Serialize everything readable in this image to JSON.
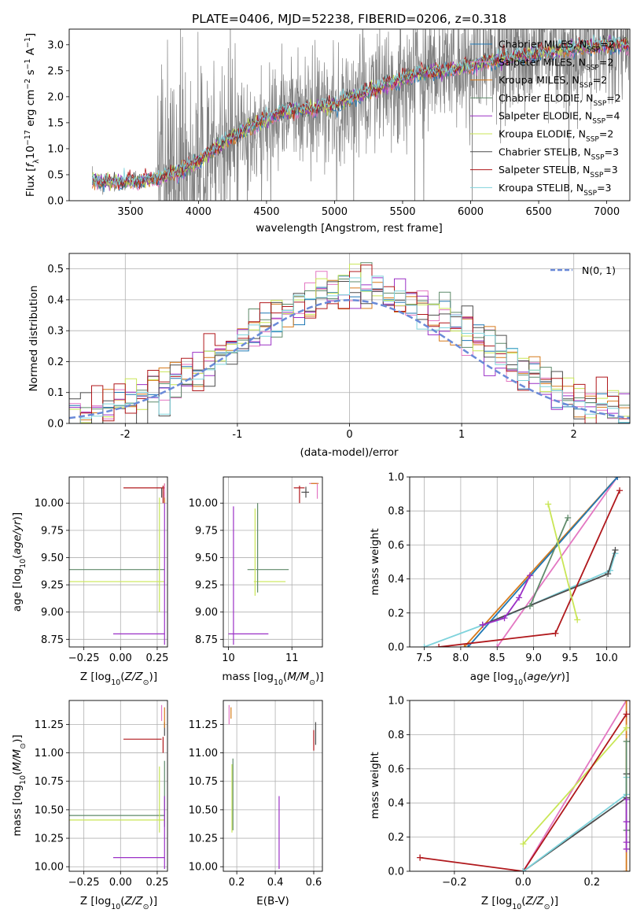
{
  "colors": {
    "Chabrier MILES": "#1f77b4",
    "Salpeter MILES": "#e377c2",
    "Kroupa MILES": "#d67a1c",
    "Chabrier ELODIE": "#5f8a6a",
    "Salpeter ELODIE": "#9b30c6",
    "Kroupa ELODIE": "#c9e656",
    "Chabrier STELIB": "#4d4d4d",
    "Salpeter STELIB": "#b0181c",
    "Kroupa STELIB": "#7fd3dc",
    "gauss": "#6a8ad8",
    "data": "#808080"
  },
  "chart_data": [
    {
      "type": "line",
      "title": "PLATE=0406, MJD=52238, FIBERID=0206, z=0.318",
      "xlabel": "wavelength [Angstrom, rest frame]",
      "ylabel": "Flux [fλ10⁻¹⁷ erg cm⁻² s⁻¹ A⁻¹]",
      "xlim": [
        3050,
        7170
      ],
      "ylim": [
        0,
        3.3
      ],
      "xticks": [
        3500,
        4000,
        4500,
        5000,
        5500,
        6000,
        6500,
        7000
      ],
      "yticks": [
        0.0,
        0.5,
        1.0,
        1.5,
        2.0,
        2.5,
        3.0
      ],
      "legend_position": "right",
      "legend": [
        {
          "model": "Chabrier MILES",
          "nssp": 2
        },
        {
          "model": "Salpeter MILES",
          "nssp": 2
        },
        {
          "model": "Kroupa MILES",
          "nssp": 2
        },
        {
          "model": "Chabrier ELODIE",
          "nssp": 2
        },
        {
          "model": "Salpeter ELODIE",
          "nssp": 4
        },
        {
          "model": "Kroupa ELODIE",
          "nssp": 2
        },
        {
          "model": "Chabrier STELIB",
          "nssp": 3
        },
        {
          "model": "Salpeter STELIB",
          "nssp": 3
        },
        {
          "model": "Kroupa STELIB",
          "nssp": 3
        }
      ],
      "legend_prefix": "N",
      "legend_sub": "SSP",
      "model_trend": {
        "x": [
          3220,
          3400,
          3600,
          3800,
          4000,
          4200,
          4400,
          4600,
          4800,
          5000,
          5200,
          5400,
          5600,
          5800,
          6000,
          6200,
          6400,
          6600,
          6800,
          7000
        ],
        "y": [
          0.4,
          0.35,
          0.38,
          0.5,
          0.75,
          1.15,
          1.45,
          1.7,
          1.75,
          1.85,
          2.05,
          2.25,
          2.45,
          2.5,
          2.6,
          2.72,
          2.8,
          2.88,
          2.95,
          3.0
        ]
      },
      "data_trend": {
        "x": [
          3220,
          3400,
          3600,
          3800,
          4000,
          4200,
          4400,
          4600,
          4800,
          5000,
          5200,
          5400,
          5600,
          5800,
          6000,
          6200,
          6400,
          6600,
          6800,
          7000
        ],
        "y": [
          0.35,
          0.3,
          0.35,
          0.55,
          0.7,
          1.1,
          1.4,
          1.65,
          1.8,
          1.9,
          2.0,
          2.2,
          2.4,
          2.5,
          2.6,
          2.7,
          2.8,
          2.85,
          2.9,
          3.0
        ]
      }
    },
    {
      "type": "area",
      "xlabel": "(data-model)/error",
      "ylabel": "Normed distribution",
      "xlim": [
        -2.5,
        2.5
      ],
      "ylim": [
        0,
        0.55
      ],
      "xticks": [
        -2,
        -1,
        0,
        1,
        2
      ],
      "yticks": [
        0.0,
        0.1,
        0.2,
        0.3,
        0.4,
        0.5
      ],
      "legend_position": "top-right",
      "legend": [
        "N(0, 1)"
      ],
      "hist_bin_width": 0.1
    },
    {
      "type": "scatter",
      "xlabel": "Z [log₁₀(Z/Z⊙)]",
      "ylabel": "age  [log₁₀(age/yr)]",
      "xlim": [
        -0.35,
        0.32
      ],
      "ylim": [
        8.68,
        10.24
      ],
      "xticks": [
        -0.25,
        0.0,
        0.25
      ],
      "yticks": [
        8.75,
        9.0,
        9.25,
        9.5,
        9.75,
        10.0
      ],
      "xticklabels": [
        "−0.25",
        "0.00",
        "0.25"
      ],
      "yticklabels": [
        "8.75",
        "9.00",
        "9.25",
        "9.50",
        "9.75",
        "10.00"
      ],
      "hlines": [
        {
          "model": "Salpeter STELIB",
          "y": 10.14,
          "x": [
            0.02,
            0.3
          ]
        },
        {
          "model": "Chabrier ELODIE",
          "y": 9.39,
          "x": [
            -0.35,
            0.3
          ]
        },
        {
          "model": "Kroupa ELODIE",
          "y": 9.28,
          "x": [
            -0.35,
            0.3
          ]
        },
        {
          "model": "Salpeter ELODIE",
          "y": 8.8,
          "x": [
            -0.05,
            0.3
          ]
        }
      ],
      "vlines": [
        {
          "model": "Kroupa ELODIE",
          "x": 0.265,
          "y": [
            9.0,
            10.05
          ]
        },
        {
          "model": "Salpeter ELODIE",
          "x": 0.3,
          "y": [
            8.7,
            10.1
          ]
        },
        {
          "model": "Salpeter STELIB",
          "x": 0.29,
          "y": [
            10.0,
            10.16
          ]
        },
        {
          "model": "Chabrier STELIB",
          "x": 0.28,
          "y": [
            10.05,
            10.14
          ]
        },
        {
          "model": "Kroupa MILES",
          "x": 0.3,
          "y": [
            10.0,
            10.18
          ]
        },
        {
          "model": "Salpeter MILES",
          "x": 0.3,
          "y": [
            10.05,
            10.18
          ]
        }
      ]
    },
    {
      "type": "scatter",
      "xlabel": "mass [log₁₀(M/M⊙)]",
      "xlim": [
        9.92,
        11.48
      ],
      "ylim": [
        8.68,
        10.24
      ],
      "xticks": [
        10,
        11
      ],
      "yticks": [
        8.75,
        9.0,
        9.25,
        9.5,
        9.75,
        10.0
      ],
      "xticklabels": [
        "10",
        "11"
      ],
      "yticklabels": [
        "8.75",
        "9.00",
        "9.25",
        "9.50",
        "9.75",
        "10.00"
      ],
      "hlines": [
        {
          "model": "Salpeter ELODIE",
          "y": 8.8,
          "x": [
            10.0,
            10.63
          ]
        },
        {
          "model": "Chabrier ELODIE",
          "y": 9.39,
          "x": [
            10.3,
            10.95
          ]
        },
        {
          "model": "Kroupa ELODIE",
          "y": 9.28,
          "x": [
            10.4,
            10.9
          ]
        },
        {
          "model": "Salpeter STELIB",
          "y": 10.14,
          "x": [
            11.03,
            11.2
          ]
        },
        {
          "model": "Chabrier STELIB",
          "y": 10.1,
          "x": [
            11.15,
            11.27
          ]
        },
        {
          "model": "Salpeter MILES",
          "y": 10.18,
          "x": [
            11.27,
            11.4
          ]
        },
        {
          "model": "Kroupa MILES",
          "y": 10.18,
          "x": [
            11.3,
            11.42
          ]
        }
      ],
      "vlines": [
        {
          "model": "Salpeter ELODIE",
          "x": 10.08,
          "y": [
            8.7,
            9.97
          ]
        },
        {
          "model": "Kroupa ELODIE",
          "x": 10.42,
          "y": [
            9.15,
            9.95
          ]
        },
        {
          "model": "Chabrier ELODIE",
          "x": 10.46,
          "y": [
            9.18,
            10.0
          ]
        },
        {
          "model": "Salpeter STELIB",
          "x": 11.12,
          "y": [
            10.0,
            10.16
          ]
        },
        {
          "model": "Chabrier STELIB",
          "x": 11.22,
          "y": [
            10.05,
            10.15
          ]
        },
        {
          "model": "Salpeter MILES",
          "x": 11.4,
          "y": [
            10.04,
            10.18
          ]
        }
      ]
    },
    {
      "type": "line",
      "xlabel": "age  [log₁₀(age/yr)]",
      "ylabel": "mass weight",
      "xlim": [
        7.3,
        10.32
      ],
      "ylim": [
        0,
        1
      ],
      "xticks": [
        7.5,
        8.0,
        8.5,
        9.0,
        9.5,
        10.0
      ],
      "yticks": [
        0.0,
        0.2,
        0.4,
        0.6,
        0.8,
        1.0
      ],
      "xticklabels": [
        "7.5",
        "8.0",
        "8.5",
        "9.0",
        "9.5",
        "10.0"
      ],
      "yticklabels": [
        "0.0",
        "0.2",
        "0.4",
        "0.6",
        "0.8",
        "1.0"
      ],
      "series": [
        {
          "model": "Kroupa MILES",
          "x": [
            8.05,
            10.15
          ],
          "y": [
            0.0,
            1.0
          ]
        },
        {
          "model": "Salpeter MILES",
          "x": [
            8.5,
            10.15
          ],
          "y": [
            0.0,
            1.0
          ]
        },
        {
          "model": "Chabrier MILES",
          "x": [
            8.1,
            10.15
          ],
          "y": [
            0.0,
            1.0
          ]
        },
        {
          "model": "Kroupa STELIB",
          "x": [
            7.5,
            8.5,
            10.05,
            10.12
          ],
          "y": [
            0.0,
            0.16,
            0.45,
            0.55
          ]
        },
        {
          "model": "Chabrier STELIB",
          "x": [
            8.3,
            10.02,
            10.12
          ],
          "y": [
            0.13,
            0.43,
            0.57
          ]
        },
        {
          "model": "Salpeter STELIB",
          "x": [
            7.7,
            9.3,
            10.18
          ],
          "y": [
            0.0,
            0.08,
            0.92
          ]
        },
        {
          "model": "Chabrier ELODIE",
          "x": [
            8.95,
            9.47
          ],
          "y": [
            0.24,
            0.76
          ]
        },
        {
          "model": "Kroupa ELODIE",
          "x": [
            9.2,
            9.6
          ],
          "y": [
            0.84,
            0.16
          ]
        },
        {
          "model": "Salpeter ELODIE",
          "x": [
            8.3,
            8.6,
            8.8,
            8.95
          ],
          "y": [
            0.13,
            0.17,
            0.29,
            0.42
          ]
        }
      ]
    },
    {
      "type": "scatter",
      "xlabel": "Z [log₁₀(Z/Z⊙)]",
      "ylabel": "mass [log₁₀(M/M⊙)]",
      "xlim": [
        -0.35,
        0.32
      ],
      "ylim": [
        9.96,
        11.46
      ],
      "xticks": [
        -0.25,
        0.0,
        0.25
      ],
      "yticks": [
        10.0,
        10.25,
        10.5,
        10.75,
        11.0,
        11.25
      ],
      "xticklabels": [
        "−0.25",
        "0.00",
        "0.25"
      ],
      "yticklabels": [
        "10.00",
        "10.25",
        "10.50",
        "10.75",
        "11.00",
        "11.25"
      ],
      "hlines": [
        {
          "model": "Salpeter STELIB",
          "y": 11.12,
          "x": [
            0.02,
            0.28
          ]
        },
        {
          "model": "Chabrier ELODIE",
          "y": 10.45,
          "x": [
            -0.35,
            0.3
          ]
        },
        {
          "model": "Kroupa ELODIE",
          "y": 10.41,
          "x": [
            -0.35,
            0.3
          ]
        },
        {
          "model": "Salpeter ELODIE",
          "y": 10.08,
          "x": [
            -0.05,
            0.3
          ]
        }
      ],
      "vlines": [
        {
          "model": "Kroupa ELODIE",
          "x": 0.265,
          "y": [
            10.3,
            10.88
          ]
        },
        {
          "model": "Chabrier ELODIE",
          "x": 0.3,
          "y": [
            10.35,
            10.93
          ]
        },
        {
          "model": "Salpeter ELODIE",
          "x": 0.3,
          "y": [
            9.98,
            10.62
          ]
        },
        {
          "model": "Salpeter STELIB",
          "x": 0.29,
          "y": [
            11.0,
            11.14
          ]
        },
        {
          "model": "Chabrier STELIB",
          "x": 0.3,
          "y": [
            11.15,
            11.27
          ]
        },
        {
          "model": "Kroupa MILES",
          "x": 0.3,
          "y": [
            11.22,
            11.4
          ]
        },
        {
          "model": "Salpeter MILES",
          "x": 0.28,
          "y": [
            11.28,
            11.42
          ]
        }
      ]
    },
    {
      "type": "scatter",
      "xlabel": "E(B-V)",
      "xlim": [
        0.13,
        0.645
      ],
      "ylim": [
        9.96,
        11.46
      ],
      "xticks": [
        0.2,
        0.4,
        0.6
      ],
      "yticks": [
        10.0,
        10.25,
        10.5,
        10.75,
        11.0,
        11.25
      ],
      "xticklabels": [
        "0.2",
        "0.4",
        "0.6"
      ],
      "yticklabels": [
        "10.00",
        "10.25",
        "10.50",
        "10.75",
        "11.00",
        "11.25"
      ],
      "vlines": [
        {
          "model": "Kroupa ELODIE",
          "x": 0.175,
          "y": [
            10.3,
            10.9
          ]
        },
        {
          "model": "Chabrier ELODIE",
          "x": 0.18,
          "y": [
            10.32,
            10.95
          ]
        },
        {
          "model": "Salpeter ELODIE",
          "x": 0.42,
          "y": [
            9.98,
            10.62
          ]
        },
        {
          "model": "Salpeter STELIB",
          "x": 0.6,
          "y": [
            11.02,
            11.2
          ]
        },
        {
          "model": "Chabrier STELIB",
          "x": 0.61,
          "y": [
            11.07,
            11.27
          ]
        },
        {
          "model": "Salpeter MILES",
          "x": 0.16,
          "y": [
            11.25,
            11.42
          ]
        },
        {
          "model": "Kroupa MILES",
          "x": 0.17,
          "y": [
            11.3,
            11.4
          ]
        }
      ]
    },
    {
      "type": "line",
      "xlabel": "Z [log₁₀(Z/Z⊙)]",
      "ylabel": "mass weight",
      "xlim": [
        -0.33,
        0.31
      ],
      "ylim": [
        0,
        1
      ],
      "xticks": [
        -0.2,
        0.0,
        0.2
      ],
      "yticks": [
        0.0,
        0.2,
        0.4,
        0.6,
        0.8,
        1.0
      ],
      "xticklabels": [
        "−0.2",
        "0.0",
        "0.2"
      ],
      "yticklabels": [
        "0.0",
        "0.2",
        "0.4",
        "0.6",
        "0.8",
        "1.0"
      ],
      "series": [
        {
          "model": "Salpeter MILES",
          "x": [
            0.0,
            0.3
          ],
          "y": [
            0.0,
            1.0
          ]
        },
        {
          "model": "Kroupa MILES",
          "x": [
            0.3,
            0.3
          ],
          "y": [
            0.0,
            1.0
          ]
        },
        {
          "model": "Kroupa ELODIE",
          "x": [
            0.0,
            0.3
          ],
          "y": [
            0.16,
            0.84
          ]
        },
        {
          "model": "Salpeter STELIB",
          "x": [
            -0.3,
            0.0,
            0.3
          ],
          "y": [
            0.08,
            0.0,
            0.92
          ]
        },
        {
          "model": "Chabrier STELIB",
          "x": [
            0.0,
            0.3,
            0.3
          ],
          "y": [
            0.0,
            0.43,
            0.57
          ]
        },
        {
          "model": "Kroupa STELIB",
          "x": [
            0.0,
            0.3,
            0.3
          ],
          "y": [
            0.0,
            0.45,
            0.55
          ]
        },
        {
          "model": "Chabrier ELODIE",
          "x": [
            0.3,
            0.3
          ],
          "y": [
            0.24,
            0.76
          ]
        },
        {
          "model": "Salpeter ELODIE",
          "x": [
            0.3,
            0.3,
            0.3,
            0.3
          ],
          "y": [
            0.13,
            0.17,
            0.29,
            0.42
          ]
        }
      ]
    }
  ]
}
